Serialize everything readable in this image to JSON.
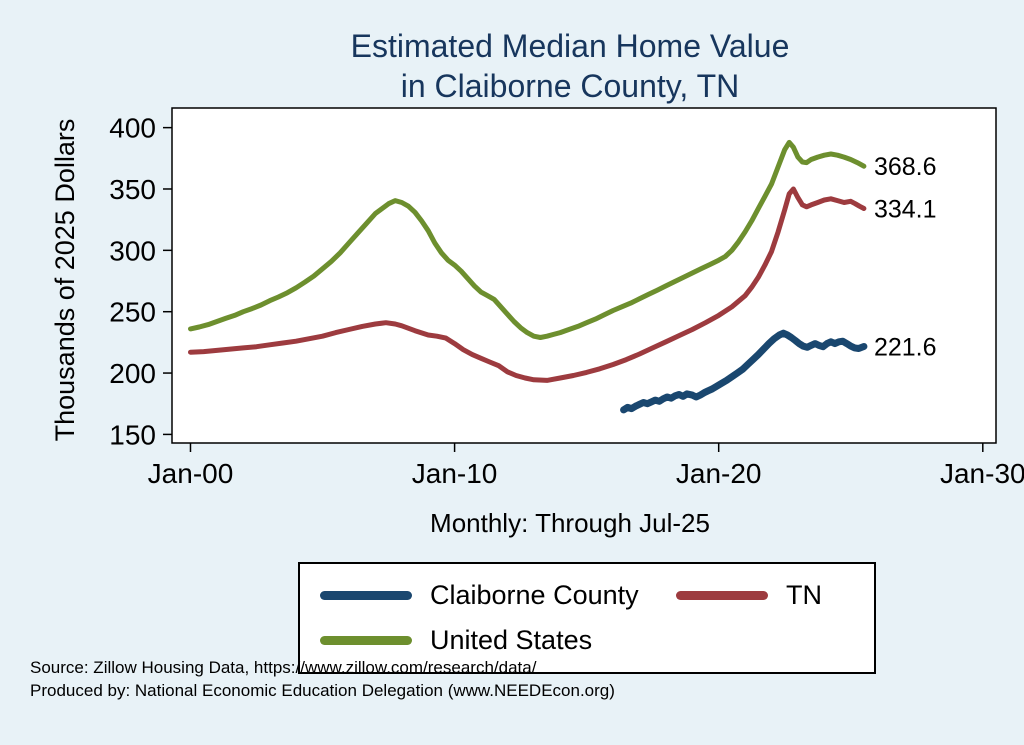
{
  "page": {
    "background": "#e8f2f7",
    "title_color": "#17365d"
  },
  "title": {
    "line1": "Estimated Median Home Value",
    "line2": "in Claiborne County, TN"
  },
  "y_axis_label": "Thousands of 2025 Dollars",
  "x_subtitle": "Monthly: Through Jul-25",
  "source": {
    "line1": "Source: Zillow Housing Data, https://www.zillow.com/research/data/",
    "line2": "Produced by: National Economic Education Delegation (www.NEEDEcon.org)"
  },
  "legend": {
    "position": "bottom-center",
    "items": [
      {
        "label": "Claiborne County",
        "color": "#1a476f"
      },
      {
        "label": "TN",
        "color": "#9d3b3f"
      },
      {
        "label": "United States",
        "color": "#6d8f2e"
      }
    ]
  },
  "chart_data": {
    "type": "line",
    "title": "Estimated Median Home Value in Claiborne County, TN",
    "xlabel": "Monthly: Through Jul-25",
    "ylabel": "Thousands of 2025 Dollars",
    "grid": false,
    "x_range": [
      1999.3,
      2030.5
    ],
    "y_range": [
      143,
      416
    ],
    "x_ticks": [
      {
        "value": 2000,
        "label": "Jan-00"
      },
      {
        "value": 2010,
        "label": "Jan-10"
      },
      {
        "value": 2020,
        "label": "Jan-20"
      },
      {
        "value": 2030,
        "label": "Jan-30"
      }
    ],
    "y_ticks": [
      150,
      200,
      250,
      300,
      350,
      400
    ],
    "series": [
      {
        "name": "United States",
        "color": "#6d8f2e",
        "stroke_width": 5,
        "end_label": "368.6",
        "points": [
          [
            2000,
            236
          ],
          [
            2000.33,
            237.5
          ],
          [
            2000.67,
            239.5
          ],
          [
            2001,
            242
          ],
          [
            2001.33,
            244.5
          ],
          [
            2001.67,
            247
          ],
          [
            2002,
            250
          ],
          [
            2002.33,
            252.5
          ],
          [
            2002.67,
            255.5
          ],
          [
            2003,
            259
          ],
          [
            2003.33,
            262
          ],
          [
            2003.67,
            265.5
          ],
          [
            2004,
            269.5
          ],
          [
            2004.33,
            274
          ],
          [
            2004.67,
            279
          ],
          [
            2005,
            285
          ],
          [
            2005.33,
            291
          ],
          [
            2005.67,
            298
          ],
          [
            2006,
            306
          ],
          [
            2006.33,
            314
          ],
          [
            2006.67,
            322
          ],
          [
            2007,
            330
          ],
          [
            2007.25,
            334
          ],
          [
            2007.5,
            338
          ],
          [
            2007.75,
            340.5
          ],
          [
            2008,
            339
          ],
          [
            2008.25,
            336
          ],
          [
            2008.5,
            331
          ],
          [
            2008.75,
            324
          ],
          [
            2009,
            316
          ],
          [
            2009.25,
            306
          ],
          [
            2009.5,
            298
          ],
          [
            2009.75,
            292
          ],
          [
            2010,
            288
          ],
          [
            2010.25,
            283
          ],
          [
            2010.5,
            277
          ],
          [
            2010.75,
            271
          ],
          [
            2011,
            266
          ],
          [
            2011.25,
            263
          ],
          [
            2011.5,
            260
          ],
          [
            2011.75,
            254
          ],
          [
            2012,
            248
          ],
          [
            2012.25,
            242
          ],
          [
            2012.5,
            237
          ],
          [
            2012.75,
            233
          ],
          [
            2013,
            230
          ],
          [
            2013.25,
            229
          ],
          [
            2013.5,
            230
          ],
          [
            2013.75,
            231.5
          ],
          [
            2014,
            233
          ],
          [
            2014.33,
            235.5
          ],
          [
            2014.67,
            238
          ],
          [
            2015,
            241
          ],
          [
            2015.33,
            244
          ],
          [
            2015.67,
            247.5
          ],
          [
            2016,
            251
          ],
          [
            2016.33,
            254
          ],
          [
            2016.67,
            257
          ],
          [
            2017,
            260.5
          ],
          [
            2017.33,
            264
          ],
          [
            2017.67,
            267.5
          ],
          [
            2018,
            271
          ],
          [
            2018.33,
            274.5
          ],
          [
            2018.67,
            278
          ],
          [
            2019,
            281.5
          ],
          [
            2019.33,
            285
          ],
          [
            2019.67,
            288.5
          ],
          [
            2020,
            292
          ],
          [
            2020.25,
            295
          ],
          [
            2020.5,
            300
          ],
          [
            2020.75,
            307
          ],
          [
            2021,
            315
          ],
          [
            2021.25,
            324
          ],
          [
            2021.5,
            334
          ],
          [
            2021.75,
            344
          ],
          [
            2022,
            354
          ],
          [
            2022.25,
            368
          ],
          [
            2022.5,
            382
          ],
          [
            2022.67,
            388
          ],
          [
            2022.83,
            384
          ],
          [
            2023,
            376
          ],
          [
            2023.17,
            372
          ],
          [
            2023.33,
            371.5
          ],
          [
            2023.5,
            374
          ],
          [
            2023.75,
            376
          ],
          [
            2024,
            377.5
          ],
          [
            2024.25,
            378.5
          ],
          [
            2024.5,
            377.5
          ],
          [
            2024.75,
            376
          ],
          [
            2025,
            374
          ],
          [
            2025.25,
            371.5
          ],
          [
            2025.5,
            368.6
          ]
        ]
      },
      {
        "name": "TN",
        "color": "#9d3b3f",
        "stroke_width": 5,
        "end_label": "334.1",
        "points": [
          [
            2000,
            217
          ],
          [
            2000.5,
            217.5
          ],
          [
            2001,
            218.5
          ],
          [
            2001.5,
            219.5
          ],
          [
            2002,
            220.5
          ],
          [
            2002.5,
            221.5
          ],
          [
            2003,
            223
          ],
          [
            2003.5,
            224.5
          ],
          [
            2004,
            226
          ],
          [
            2004.5,
            228
          ],
          [
            2005,
            230
          ],
          [
            2005.5,
            233
          ],
          [
            2006,
            235.5
          ],
          [
            2006.5,
            238
          ],
          [
            2007,
            240
          ],
          [
            2007.4,
            241
          ],
          [
            2007.75,
            240
          ],
          [
            2008,
            238.5
          ],
          [
            2008.5,
            234.5
          ],
          [
            2009,
            231
          ],
          [
            2009.33,
            230
          ],
          [
            2009.67,
            228.5
          ],
          [
            2010,
            224
          ],
          [
            2010.33,
            219
          ],
          [
            2010.67,
            215
          ],
          [
            2011,
            212
          ],
          [
            2011.33,
            209
          ],
          [
            2011.67,
            206
          ],
          [
            2012,
            201
          ],
          [
            2012.33,
            198
          ],
          [
            2012.67,
            196
          ],
          [
            2013,
            194.5
          ],
          [
            2013.5,
            194
          ],
          [
            2014,
            196
          ],
          [
            2014.5,
            198
          ],
          [
            2015,
            200.5
          ],
          [
            2015.5,
            203.5
          ],
          [
            2016,
            207
          ],
          [
            2016.5,
            211
          ],
          [
            2017,
            215.5
          ],
          [
            2017.5,
            220.5
          ],
          [
            2018,
            225.5
          ],
          [
            2018.5,
            230.5
          ],
          [
            2019,
            235.5
          ],
          [
            2019.5,
            241
          ],
          [
            2020,
            247
          ],
          [
            2020.5,
            254
          ],
          [
            2021,
            263
          ],
          [
            2021.25,
            270
          ],
          [
            2021.5,
            278
          ],
          [
            2021.75,
            288
          ],
          [
            2022,
            299
          ],
          [
            2022.25,
            315
          ],
          [
            2022.5,
            333
          ],
          [
            2022.67,
            346
          ],
          [
            2022.83,
            350
          ],
          [
            2023,
            343
          ],
          [
            2023.17,
            337
          ],
          [
            2023.33,
            335.5
          ],
          [
            2023.5,
            337
          ],
          [
            2023.75,
            339
          ],
          [
            2024,
            341
          ],
          [
            2024.25,
            342
          ],
          [
            2024.5,
            340.5
          ],
          [
            2024.75,
            339
          ],
          [
            2025,
            340
          ],
          [
            2025.17,
            338
          ],
          [
            2025.33,
            336
          ],
          [
            2025.5,
            334.1
          ]
        ]
      },
      {
        "name": "Claiborne County",
        "color": "#1a476f",
        "stroke_width": 7,
        "end_label": "221.6",
        "points": [
          [
            2016.4,
            170
          ],
          [
            2016.55,
            172
          ],
          [
            2016.7,
            171
          ],
          [
            2016.85,
            173
          ],
          [
            2017,
            174.5
          ],
          [
            2017.15,
            176
          ],
          [
            2017.3,
            175
          ],
          [
            2017.45,
            176.5
          ],
          [
            2017.6,
            178
          ],
          [
            2017.75,
            177
          ],
          [
            2017.9,
            179
          ],
          [
            2018.05,
            180.5
          ],
          [
            2018.2,
            179.5
          ],
          [
            2018.35,
            181.5
          ],
          [
            2018.5,
            182.5
          ],
          [
            2018.65,
            181
          ],
          [
            2018.8,
            183
          ],
          [
            2019,
            182
          ],
          [
            2019.15,
            180.5
          ],
          [
            2019.3,
            182
          ],
          [
            2019.45,
            184
          ],
          [
            2019.6,
            185.5
          ],
          [
            2019.75,
            187
          ],
          [
            2019.9,
            189
          ],
          [
            2020.1,
            191.5
          ],
          [
            2020.3,
            194
          ],
          [
            2020.5,
            197
          ],
          [
            2020.7,
            200
          ],
          [
            2020.9,
            203
          ],
          [
            2021.1,
            207
          ],
          [
            2021.3,
            211
          ],
          [
            2021.5,
            215
          ],
          [
            2021.7,
            219.5
          ],
          [
            2021.9,
            224
          ],
          [
            2022.1,
            228
          ],
          [
            2022.3,
            231
          ],
          [
            2022.45,
            232.5
          ],
          [
            2022.6,
            231
          ],
          [
            2022.75,
            229
          ],
          [
            2022.9,
            226.5
          ],
          [
            2023.05,
            224
          ],
          [
            2023.2,
            222
          ],
          [
            2023.35,
            221
          ],
          [
            2023.5,
            222.5
          ],
          [
            2023.65,
            224
          ],
          [
            2023.8,
            222.5
          ],
          [
            2023.95,
            221.5
          ],
          [
            2024.1,
            224
          ],
          [
            2024.25,
            225.5
          ],
          [
            2024.4,
            224
          ],
          [
            2024.55,
            225.5
          ],
          [
            2024.7,
            226
          ],
          [
            2024.85,
            224
          ],
          [
            2025,
            222
          ],
          [
            2025.15,
            220.5
          ],
          [
            2025.3,
            220
          ],
          [
            2025.5,
            221.6
          ]
        ]
      }
    ]
  }
}
